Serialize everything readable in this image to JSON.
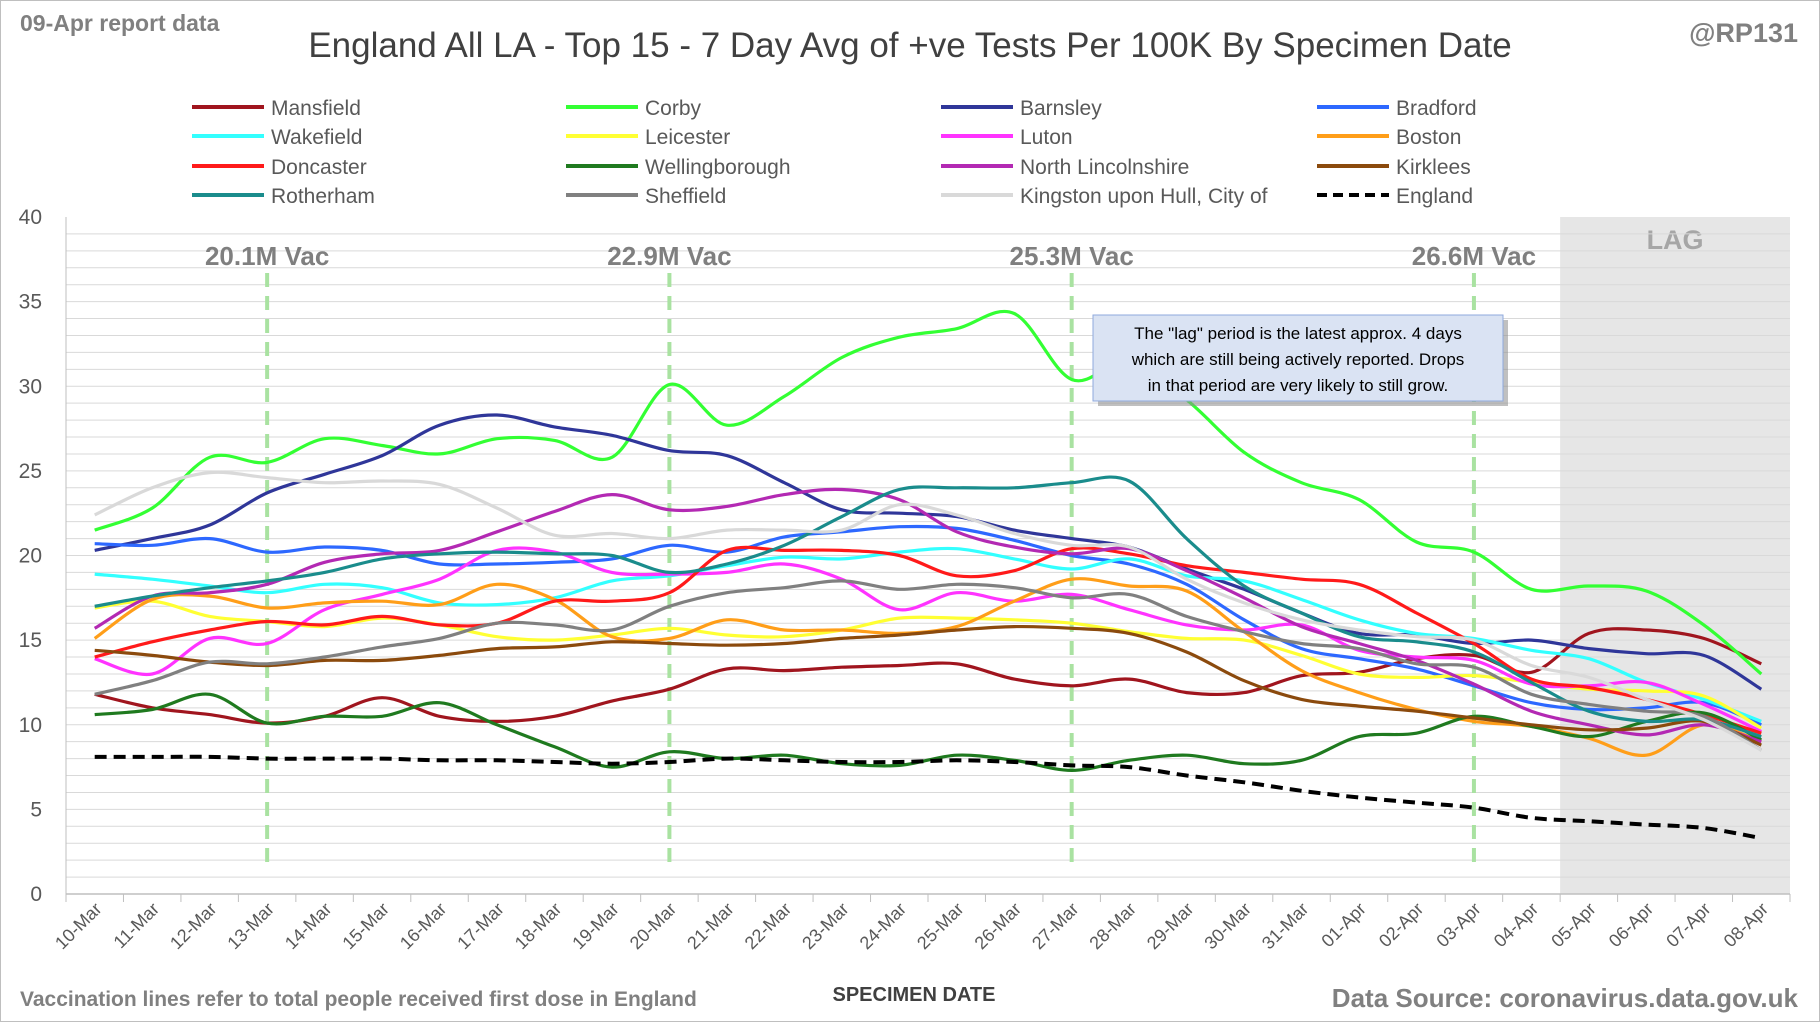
{
  "report_date": "09-Apr report data",
  "handle": "@RP131",
  "footnote": "Vaccination lines refer to total people received first dose in England",
  "source": "Data Source: coronavirus.data.gov.uk",
  "callout": [
    "The \"lag\" period is the latest approx. 4 days",
    "which are still being actively reported.  Drops",
    "in that period are very likely to still grow."
  ],
  "colors": {
    "vac_line": "#a9e2a1",
    "lag_shade": "#e6e6e6",
    "grid": "#d9d9d9",
    "axis_text": "#595959"
  },
  "chart_data": {
    "type": "line",
    "title": "England All LA - Top 15 - 7 Day Avg of +ve Tests Per 100K By Specimen Date",
    "xlabel": "SPECIMEN DATE",
    "ylabel": "",
    "ylim": [
      0,
      40
    ],
    "yticks": [
      0,
      5,
      10,
      15,
      20,
      25,
      30,
      35,
      40
    ],
    "grid": "horizontal",
    "legend_position": "top",
    "categories": [
      "10-Mar",
      "11-Mar",
      "12-Mar",
      "13-Mar",
      "14-Mar",
      "15-Mar",
      "16-Mar",
      "17-Mar",
      "18-Mar",
      "19-Mar",
      "20-Mar",
      "21-Mar",
      "22-Mar",
      "23-Mar",
      "24-Mar",
      "25-Mar",
      "26-Mar",
      "27-Mar",
      "28-Mar",
      "29-Mar",
      "30-Mar",
      "31-Mar",
      "01-Apr",
      "02-Apr",
      "03-Apr",
      "04-Apr",
      "05-Apr",
      "06-Apr",
      "07-Apr",
      "08-Apr"
    ],
    "lag": {
      "label": "LAG",
      "from": "05-Apr",
      "to": "08-Apr"
    },
    "vaccination_markers": [
      {
        "label": "20.1M Vac",
        "date": "13-Mar"
      },
      {
        "label": "22.9M Vac",
        "date": "20-Mar"
      },
      {
        "label": "25.3M Vac",
        "date": "27-Mar"
      },
      {
        "label": "26.6M Vac",
        "date": "03-Apr"
      }
    ],
    "series": [
      {
        "name": "Mansfield",
        "color": "#a0151e",
        "dash": false,
        "values": [
          11.8,
          11.0,
          10.6,
          10.1,
          10.5,
          11.6,
          10.5,
          10.2,
          10.5,
          11.4,
          12.1,
          13.3,
          13.2,
          13.4,
          13.5,
          13.6,
          12.7,
          12.3,
          12.7,
          11.9,
          11.9,
          12.9,
          13.1,
          13.9,
          14.1,
          13.1,
          15.4,
          15.6,
          15.1,
          13.6
        ]
      },
      {
        "name": "Corby",
        "color": "#33ff33",
        "dash": false,
        "values": [
          21.5,
          22.8,
          25.8,
          25.5,
          26.9,
          26.5,
          26.0,
          26.9,
          26.8,
          25.8,
          30.1,
          27.7,
          29.4,
          31.7,
          32.9,
          33.4,
          34.3,
          30.4,
          31.5,
          29.2,
          26.1,
          24.3,
          23.3,
          20.8,
          20.2,
          18.0,
          18.2,
          17.9,
          15.9,
          13.0
        ]
      },
      {
        "name": "Barnsley",
        "color": "#2f3699",
        "dash": false,
        "values": [
          20.3,
          21.0,
          21.8,
          23.7,
          24.8,
          25.9,
          27.7,
          28.3,
          27.6,
          27.1,
          26.2,
          25.9,
          24.3,
          22.7,
          22.5,
          22.3,
          21.5,
          21.0,
          20.5,
          19.2,
          18.0,
          16.6,
          15.4,
          15.3,
          14.8,
          15.0,
          14.5,
          14.2,
          14.1,
          12.1
        ]
      },
      {
        "name": "Bradford",
        "color": "#2d68ff",
        "dash": false,
        "values": [
          20.7,
          20.6,
          21.0,
          20.2,
          20.5,
          20.3,
          19.5,
          19.5,
          19.6,
          19.8,
          20.6,
          20.2,
          21.1,
          21.4,
          21.7,
          21.6,
          20.9,
          20.0,
          19.5,
          18.3,
          16.2,
          14.5,
          13.9,
          13.3,
          12.3,
          11.3,
          10.9,
          11.0,
          11.3,
          10.0
        ]
      },
      {
        "name": "Wakefield",
        "color": "#33ffff",
        "dash": false,
        "values": [
          18.9,
          18.6,
          18.2,
          17.8,
          18.3,
          18.1,
          17.2,
          17.1,
          17.5,
          18.5,
          18.8,
          19.4,
          19.9,
          19.8,
          20.2,
          20.4,
          19.8,
          19.2,
          19.8,
          18.8,
          18.5,
          17.4,
          16.2,
          15.4,
          15.1,
          14.4,
          13.9,
          12.5,
          11.5,
          10.2
        ]
      },
      {
        "name": "Leicester",
        "color": "#ffff33",
        "dash": false,
        "values": [
          16.9,
          17.3,
          16.4,
          16.1,
          15.8,
          16.3,
          15.9,
          15.2,
          15.0,
          15.3,
          15.7,
          15.3,
          15.2,
          15.6,
          16.3,
          16.3,
          16.2,
          16.0,
          15.5,
          15.1,
          15.0,
          14.1,
          13.0,
          12.8,
          12.9,
          12.5,
          12.1,
          12.0,
          11.7,
          9.8
        ]
      },
      {
        "name": "Luton",
        "color": "#ff33ff",
        "dash": false,
        "values": [
          13.9,
          13.0,
          15.1,
          14.8,
          16.8,
          17.7,
          18.6,
          20.3,
          20.2,
          19.0,
          18.9,
          19.0,
          19.5,
          18.6,
          16.8,
          17.8,
          17.3,
          17.7,
          16.8,
          15.9,
          15.6,
          15.9,
          14.4,
          14.0,
          13.8,
          12.4,
          12.3,
          12.5,
          11.2,
          9.6
        ]
      },
      {
        "name": "Boston",
        "color": "#ff9e19",
        "dash": false,
        "values": [
          15.1,
          17.4,
          17.6,
          16.9,
          17.2,
          17.3,
          17.1,
          18.3,
          17.4,
          15.2,
          15.1,
          16.2,
          15.6,
          15.6,
          15.4,
          15.8,
          17.3,
          18.6,
          18.2,
          17.9,
          15.5,
          13.2,
          11.9,
          10.9,
          10.2,
          9.9,
          9.2,
          8.2,
          10.0,
          9.0
        ]
      },
      {
        "name": "Doncaster",
        "color": "#ff1a1a",
        "dash": false,
        "values": [
          14.0,
          14.9,
          15.6,
          16.1,
          15.9,
          16.4,
          15.9,
          16.0,
          17.3,
          17.3,
          17.8,
          20.3,
          20.3,
          20.3,
          20.0,
          18.8,
          19.1,
          20.4,
          20.1,
          19.4,
          19.0,
          18.6,
          18.3,
          16.6,
          14.8,
          12.7,
          12.2,
          11.5,
          10.6,
          9.5
        ]
      },
      {
        "name": "Wellingborough",
        "color": "#1f7a1f",
        "dash": false,
        "values": [
          10.6,
          10.9,
          11.8,
          10.1,
          10.5,
          10.5,
          11.3,
          10.0,
          8.7,
          7.5,
          8.4,
          8.0,
          8.2,
          7.7,
          7.6,
          8.2,
          7.9,
          7.3,
          7.9,
          8.2,
          7.7,
          7.9,
          9.3,
          9.5,
          10.5,
          9.9,
          9.3,
          10.2,
          10.7,
          9.1
        ]
      },
      {
        "name": "North Lincolnshire",
        "color": "#b329b3",
        "dash": false,
        "values": [
          15.7,
          17.6,
          17.8,
          18.3,
          19.6,
          20.1,
          20.3,
          21.4,
          22.6,
          23.6,
          22.7,
          22.9,
          23.6,
          23.9,
          23.3,
          21.4,
          20.5,
          20.1,
          20.4,
          19.1,
          17.5,
          15.8,
          14.8,
          13.8,
          12.4,
          10.8,
          10.0,
          9.4,
          10.0,
          9.0
        ]
      },
      {
        "name": "Kirklees",
        "color": "#8b4a0d",
        "dash": false,
        "values": [
          14.4,
          14.1,
          13.7,
          13.5,
          13.8,
          13.8,
          14.1,
          14.5,
          14.6,
          14.9,
          14.8,
          14.7,
          14.8,
          15.1,
          15.3,
          15.6,
          15.8,
          15.7,
          15.4,
          14.3,
          12.6,
          11.5,
          11.1,
          10.8,
          10.4,
          10.0,
          9.7,
          9.8,
          10.2,
          8.8
        ]
      },
      {
        "name": "Rotherham",
        "color": "#1a8c8c",
        "dash": false,
        "values": [
          17.0,
          17.6,
          18.1,
          18.5,
          19.0,
          19.8,
          20.1,
          20.2,
          20.1,
          20.0,
          19.0,
          19.5,
          20.6,
          22.3,
          23.9,
          24.0,
          24.0,
          24.3,
          24.4,
          21.0,
          18.2,
          16.6,
          15.2,
          14.9,
          14.3,
          12.5,
          10.8,
          10.2,
          10.3,
          9.3
        ]
      },
      {
        "name": "Sheffield",
        "color": "#808080",
        "dash": false,
        "values": [
          11.8,
          12.6,
          13.7,
          13.6,
          14.0,
          14.6,
          15.1,
          16.0,
          15.9,
          15.6,
          17.0,
          17.8,
          18.1,
          18.5,
          18.0,
          18.3,
          18.1,
          17.5,
          17.7,
          16.4,
          15.5,
          14.8,
          14.5,
          13.6,
          13.4,
          11.8,
          11.2,
          10.8,
          10.5,
          8.5
        ]
      },
      {
        "name": "Kingston upon Hull, City of",
        "color": "#d9d9d9",
        "dash": false,
        "values": [
          22.4,
          24.0,
          24.9,
          24.6,
          24.3,
          24.4,
          24.2,
          22.8,
          21.2,
          21.3,
          21.0,
          21.5,
          21.5,
          21.5,
          23.0,
          22.4,
          21.3,
          20.6,
          20.5,
          18.6,
          17.2,
          16.2,
          15.6,
          15.2,
          15.0,
          13.5,
          12.8,
          11.5,
          10.3,
          8.5
        ]
      },
      {
        "name": "England",
        "color": "#000000",
        "dash": true,
        "values": [
          8.1,
          8.1,
          8.1,
          8.0,
          8.0,
          8.0,
          7.9,
          7.9,
          7.8,
          7.7,
          7.8,
          8.0,
          7.9,
          7.8,
          7.8,
          7.9,
          7.8,
          7.6,
          7.5,
          7.0,
          6.6,
          6.1,
          5.7,
          5.4,
          5.1,
          4.5,
          4.3,
          4.1,
          3.9,
          3.3
        ]
      }
    ]
  }
}
